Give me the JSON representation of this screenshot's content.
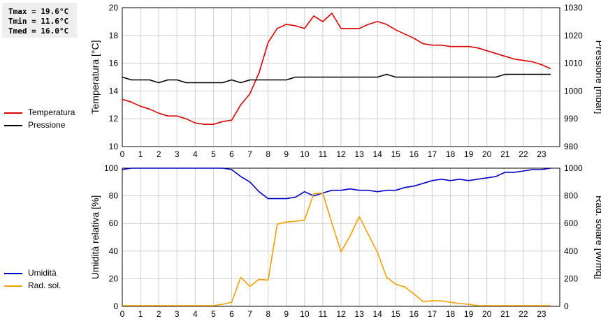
{
  "stats": {
    "tmax": "Tmax = 19.6°C",
    "tmin": "Tmin = 11.6°C",
    "tmed": "Tmed = 16.0°C"
  },
  "legend_top": [
    {
      "label": "Temperatura",
      "color": "#dd0000"
    },
    {
      "label": "Pressione",
      "color": "#000000"
    }
  ],
  "legend_bottom": [
    {
      "label": "Umidità",
      "color": "#0000cc"
    },
    {
      "label": "Rad. sol.",
      "color": "#f0a000"
    }
  ],
  "chart_data": [
    {
      "type": "line",
      "xlim": [
        0,
        24
      ],
      "xticks": [
        0,
        1,
        2,
        3,
        4,
        5,
        6,
        7,
        8,
        9,
        10,
        11,
        12,
        13,
        14,
        15,
        16,
        17,
        18,
        19,
        20,
        21,
        22,
        23
      ],
      "grid": true,
      "ylabel_left": "Temperatura [°C]",
      "ylabel_right": "Pressione [mbar]",
      "ylim_left": [
        10,
        20
      ],
      "yticks_left": [
        10,
        12,
        14,
        16,
        18,
        20
      ],
      "ylim_right": [
        980,
        1030
      ],
      "yticks_right": [
        980,
        990,
        1000,
        1010,
        1020,
        1030
      ],
      "series": [
        {
          "name": "Temperatura",
          "axis": "left",
          "color": "#dd0000",
          "x": [
            0,
            0.5,
            1,
            1.5,
            2,
            2.5,
            3,
            3.5,
            4,
            4.5,
            5,
            5.5,
            6,
            6.5,
            7,
            7.5,
            8,
            8.5,
            9,
            9.5,
            10,
            10.5,
            11,
            11.5,
            12,
            12.5,
            13,
            13.5,
            14,
            14.5,
            15,
            15.5,
            16,
            16.5,
            17,
            17.5,
            18,
            18.5,
            19,
            19.5,
            20,
            20.5,
            21,
            21.5,
            22,
            22.5,
            23,
            23.5
          ],
          "y": [
            13.4,
            13.2,
            12.9,
            12.7,
            12.4,
            12.2,
            12.2,
            12.0,
            11.7,
            11.6,
            11.6,
            11.8,
            11.9,
            13.0,
            13.8,
            15.3,
            17.5,
            18.5,
            18.8,
            18.7,
            18.5,
            19.4,
            19.0,
            19.6,
            18.5,
            18.5,
            18.5,
            18.8,
            19.0,
            18.8,
            18.4,
            18.1,
            17.8,
            17.4,
            17.3,
            17.3,
            17.2,
            17.2,
            17.2,
            17.1,
            16.9,
            16.7,
            16.5,
            16.3,
            16.2,
            16.1,
            15.9,
            15.6
          ]
        },
        {
          "name": "Pressione",
          "axis": "right",
          "color": "#000000",
          "x": [
            0,
            0.5,
            1,
            1.5,
            2,
            2.5,
            3,
            3.5,
            4,
            4.5,
            5,
            5.5,
            6,
            6.5,
            7,
            7.5,
            8,
            8.5,
            9,
            9.5,
            10,
            10.5,
            11,
            11.5,
            12,
            12.5,
            13,
            13.5,
            14,
            14.5,
            15,
            15.5,
            16,
            16.5,
            17,
            17.5,
            18,
            18.5,
            19,
            19.5,
            20,
            20.5,
            21,
            21.5,
            22,
            22.5,
            23,
            23.5
          ],
          "y": [
            1005,
            1004,
            1004,
            1004,
            1003,
            1004,
            1004,
            1003,
            1003,
            1003,
            1003,
            1003,
            1004,
            1003,
            1004,
            1004,
            1004,
            1004,
            1004,
            1005,
            1005,
            1005,
            1005,
            1005,
            1005,
            1005,
            1005,
            1005,
            1005,
            1006,
            1005,
            1005,
            1005,
            1005,
            1005,
            1005,
            1005,
            1005,
            1005,
            1005,
            1005,
            1005,
            1006,
            1006,
            1006,
            1006,
            1006,
            1006
          ]
        }
      ]
    },
    {
      "type": "line",
      "xlim": [
        0,
        24
      ],
      "xticks": [
        0,
        1,
        2,
        3,
        4,
        5,
        6,
        7,
        8,
        9,
        10,
        11,
        12,
        13,
        14,
        15,
        16,
        17,
        18,
        19,
        20,
        21,
        22,
        23
      ],
      "grid": true,
      "ylabel_left": "Umidità relativa [%]",
      "ylabel_right": "Rad. solare [W/mq]",
      "ylim_left": [
        0,
        100
      ],
      "yticks_left": [
        0,
        20,
        40,
        60,
        80,
        100
      ],
      "ylim_right": [
        0,
        1000
      ],
      "yticks_right": [
        0,
        200,
        400,
        600,
        800,
        1000
      ],
      "series": [
        {
          "name": "Umidità",
          "axis": "left",
          "color": "#0000cc",
          "x": [
            0,
            0.5,
            1,
            1.5,
            2,
            2.5,
            3,
            3.5,
            4,
            4.5,
            5,
            5.5,
            6,
            6.5,
            7,
            7.5,
            8,
            8.5,
            9,
            9.5,
            10,
            10.5,
            11,
            11.5,
            12,
            12.5,
            13,
            13.5,
            14,
            14.5,
            15,
            15.5,
            16,
            16.5,
            17,
            17.5,
            18,
            18.5,
            19,
            19.5,
            20,
            20.5,
            21,
            21.5,
            22,
            22.5,
            23,
            23.5
          ],
          "y": [
            99,
            100,
            100,
            100,
            100,
            100,
            100,
            100,
            100,
            100,
            100,
            100,
            99,
            94,
            90,
            83,
            78,
            78,
            78,
            79,
            83,
            80,
            82,
            84,
            84,
            85,
            84,
            84,
            83,
            84,
            84,
            86,
            87,
            89,
            91,
            92,
            91,
            92,
            91,
            92,
            93,
            94,
            97,
            97,
            98,
            99,
            99,
            100
          ]
        },
        {
          "name": "Rad. sol.",
          "axis": "right",
          "color": "#f0a000",
          "x": [
            0,
            0.5,
            1,
            1.5,
            2,
            2.5,
            3,
            3.5,
            4,
            4.5,
            5,
            5.5,
            6,
            6.5,
            7,
            7.5,
            8,
            8.5,
            9,
            9.5,
            10,
            10.5,
            11,
            11.5,
            12,
            12.5,
            13,
            13.5,
            14,
            14.5,
            15,
            15.5,
            16,
            16.5,
            17,
            17.5,
            18,
            18.5,
            19,
            19.5,
            20,
            20.5,
            21,
            21.5,
            22,
            22.5,
            23,
            23.5
          ],
          "y": [
            5,
            5,
            5,
            5,
            5,
            5,
            5,
            5,
            5,
            5,
            5,
            15,
            30,
            210,
            145,
            195,
            190,
            595,
            610,
            615,
            625,
            815,
            820,
            600,
            395,
            510,
            650,
            520,
            390,
            210,
            160,
            140,
            90,
            35,
            40,
            40,
            30,
            20,
            15,
            5,
            5,
            5,
            5,
            5,
            5,
            5,
            5,
            5
          ]
        }
      ]
    }
  ]
}
